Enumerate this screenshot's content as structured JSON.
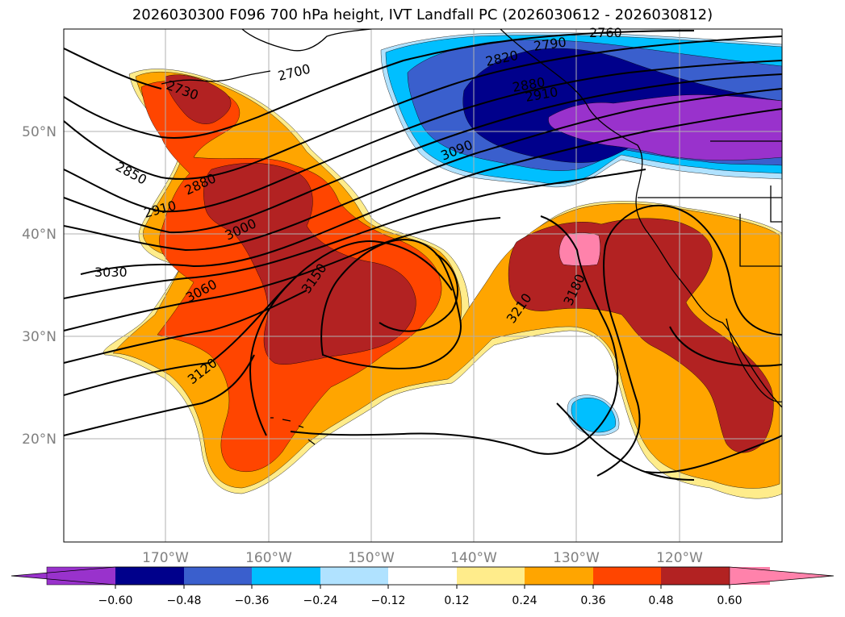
{
  "title": "2026030300 F096 700 hPa height, IVT Landfall PC (2026030612 - 2026030812)",
  "colors": {
    "c_m060": "#9932cc",
    "c_m048": "#00008b",
    "c_m036": "#3a5fcd",
    "c_m024": "#00bfff",
    "c_m012": "#b0e2ff",
    "c_neutral": "#ffffff",
    "c_p012": "#ffec8b",
    "c_p024": "#ffa500",
    "c_p036": "#ff4500",
    "c_p048": "#b22222",
    "c_p060": "#ff82ab"
  },
  "map": {
    "lon_labels": [
      "170°W",
      "160°W",
      "150°W",
      "140°W",
      "130°W",
      "120°W"
    ],
    "lat_labels": [
      "50°N",
      "40°N",
      "30°N",
      "20°N"
    ],
    "contour_labels": [
      "2730",
      "2700",
      "2760",
      "2790",
      "2820",
      "2880",
      "2910",
      "2850",
      "2880",
      "2910",
      "3000",
      "3030",
      "3060",
      "3090",
      "3120",
      "3150",
      "3210",
      "3180"
    ]
  },
  "colorbar": {
    "ticks": [
      "−0.60",
      "−0.48",
      "−0.36",
      "−0.24",
      "−0.12",
      "0.12",
      "0.24",
      "0.36",
      "0.48",
      "0.60"
    ]
  }
}
